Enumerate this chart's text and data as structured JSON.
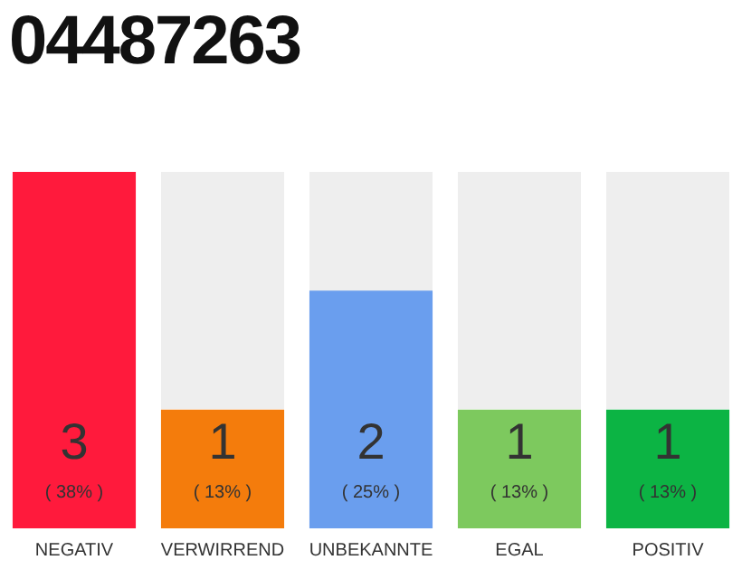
{
  "chart_data": {
    "type": "bar",
    "title": "04487263",
    "categories": [
      "NEGATIV",
      "VERWIRREND",
      "UNBEKANNTE",
      "EGAL",
      "POSITIV"
    ],
    "values": [
      3,
      1,
      2,
      1,
      1
    ],
    "colors": [
      "#ff1a3c",
      "#f47c0c",
      "#6a9eee",
      "#7dc95e",
      "#0cb444"
    ],
    "value_labels": [
      "3\n( 38% )",
      "1\n( 13% )",
      "2\n( 25% )",
      "1\n( 13% )",
      "1\n( 13% )"
    ],
    "grid": false,
    "legend": false,
    "tick_labels": "x"
  }
}
